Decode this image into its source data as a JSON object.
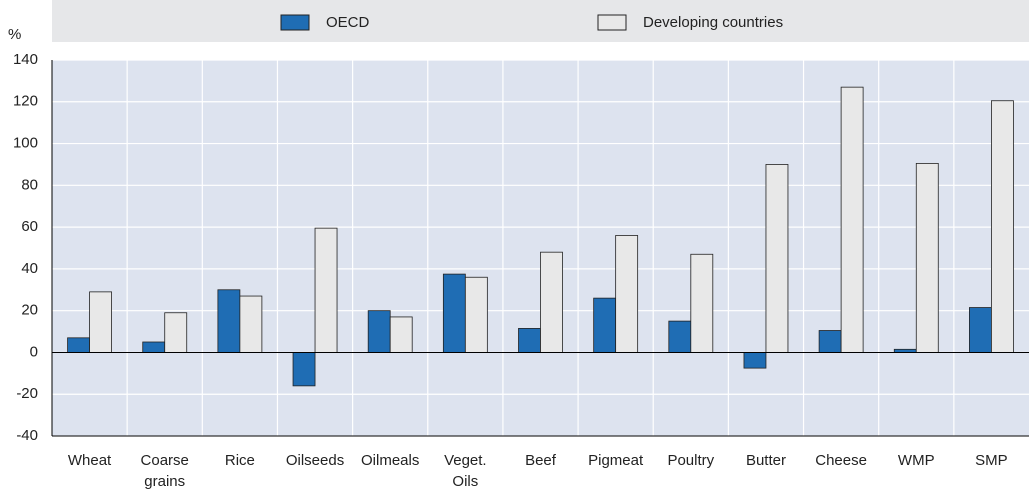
{
  "chart_data": {
    "type": "bar",
    "y_unit_label": "%",
    "categories": [
      "Wheat",
      "Coarse grains",
      "Rice",
      "Oilseeds",
      "Oilmeals",
      "Veget. Oils",
      "Beef",
      "Pigmeat",
      "Poultry",
      "Butter",
      "Cheese",
      "WMP",
      "SMP"
    ],
    "series": [
      {
        "name": "OECD",
        "color": "#1f6db4",
        "values": [
          7,
          5,
          30,
          -16,
          20,
          37.5,
          11.5,
          26,
          15,
          -7.5,
          10.5,
          1.5,
          21.5
        ]
      },
      {
        "name": "Developing countries",
        "color": "#e8e8e8",
        "values": [
          29,
          19,
          27,
          59.5,
          17,
          36,
          48,
          56,
          47,
          90,
          127,
          90.5,
          120.5
        ]
      }
    ],
    "ylim": [
      -40,
      140
    ],
    "yticks": [
      -40,
      -20,
      0,
      20,
      40,
      60,
      80,
      100,
      120,
      140
    ],
    "grid": true,
    "legend": "top"
  }
}
